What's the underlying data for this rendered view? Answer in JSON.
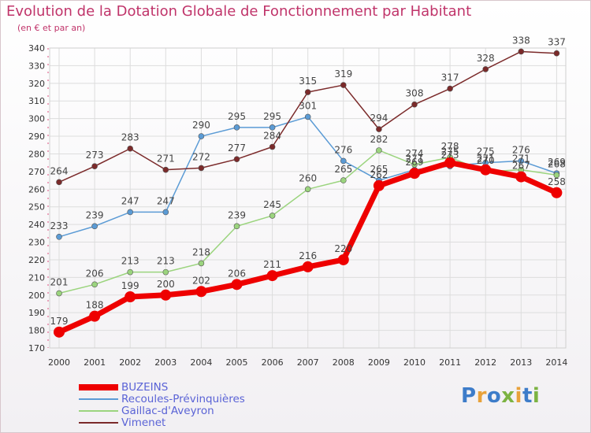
{
  "title": "Evolution de la Dotation Globale de Fonctionnement par Habitant",
  "subtitle": "(en € et par an)",
  "logo": {
    "text": "Proxiti",
    "colors": [
      "#3d7cc9",
      "#e8a23a",
      "#3d7cc9",
      "#7cb342",
      "#e8a23a",
      "#3d7cc9",
      "#7cb342"
    ]
  },
  "chart_data": {
    "type": "line",
    "x": [
      2000,
      2001,
      2002,
      2003,
      2004,
      2005,
      2006,
      2007,
      2008,
      2009,
      2010,
      2011,
      2012,
      2013,
      2014
    ],
    "ylim": [
      170,
      340
    ],
    "yticks": [
      170,
      180,
      190,
      200,
      210,
      220,
      230,
      240,
      250,
      260,
      270,
      280,
      290,
      300,
      310,
      320,
      330,
      340
    ],
    "title": "Evolution de la Dotation Globale de Fonctionnement par Habitant",
    "subtitle": "(en € et par an)",
    "legend_position": "bottom-left",
    "grid": true,
    "series": [
      {
        "name": "BUZEINS",
        "color": "#ee0000",
        "values": [
          179,
          188,
          199,
          200,
          202,
          206,
          211,
          216,
          220,
          262,
          269,
          275,
          271,
          267,
          258
        ],
        "labels": [
          "179",
          "188",
          "199",
          "200",
          "202",
          "206",
          "211",
          "216",
          "220",
          "262",
          "269",
          "275",
          "271",
          "267",
          "258"
        ]
      },
      {
        "name": "Recoules-Prévinquières",
        "color": "#5b9bd5",
        "values": [
          233,
          239,
          247,
          247,
          290,
          295,
          295,
          301,
          276,
          265,
          271,
          273,
          275,
          276,
          269
        ],
        "labels": [
          "233",
          "239",
          "247",
          "247",
          "290",
          "295",
          "295",
          "301",
          "276",
          "265",
          "271",
          "273",
          "275",
          "276",
          "269"
        ]
      },
      {
        "name": "Gaillac-d'Aveyron",
        "color": "#9bd47e",
        "values": [
          201,
          206,
          213,
          213,
          218,
          239,
          245,
          260,
          265,
          282,
          274,
          278,
          270,
          271,
          268
        ],
        "labels": [
          "201",
          "206",
          "213",
          "213",
          "218",
          "239",
          "245",
          "260",
          "265",
          "282",
          "274",
          "278",
          "270",
          "271",
          "268"
        ]
      },
      {
        "name": "Vimenet",
        "color": "#7b2a2a",
        "values": [
          264,
          273,
          283,
          271,
          272,
          277,
          284,
          315,
          319,
          294,
          308,
          317,
          328,
          338,
          337
        ],
        "labels": [
          "264",
          "273",
          "283",
          "271",
          "272",
          "277",
          "284",
          "315",
          "319",
          "294",
          "308",
          "317",
          "328",
          "338",
          "337"
        ]
      }
    ]
  }
}
